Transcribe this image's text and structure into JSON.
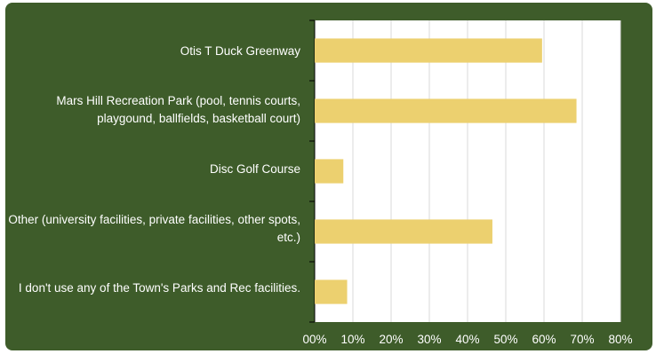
{
  "chart_data": {
    "type": "bar",
    "orientation": "horizontal",
    "categories": [
      "Otis T Duck Greenway",
      "Mars Hill Recreation Park (pool, tennis courts, playgound, ballfields, basketball court)",
      "Disc Golf Course",
      "Other (university facilities, private facilities, other spots, etc.)",
      "I don't use any of the Town's Parks and Rec facilities."
    ],
    "values": [
      59.5,
      68.5,
      7.5,
      46.5,
      8.5
    ],
    "unit": "%",
    "xlim": [
      0,
      80
    ],
    "xticks": [
      "00%",
      "10%",
      "20%",
      "30%",
      "40%",
      "50%",
      "60%",
      "70%",
      "80%"
    ],
    "grid": true,
    "title": "",
    "xlabel": "",
    "ylabel": "",
    "colors": {
      "frame": "#3e5c2a",
      "plot_bg": "#ffffff",
      "bar": "#ecd06f",
      "grid": "#d9d9d9",
      "text": "#ffffff"
    }
  }
}
